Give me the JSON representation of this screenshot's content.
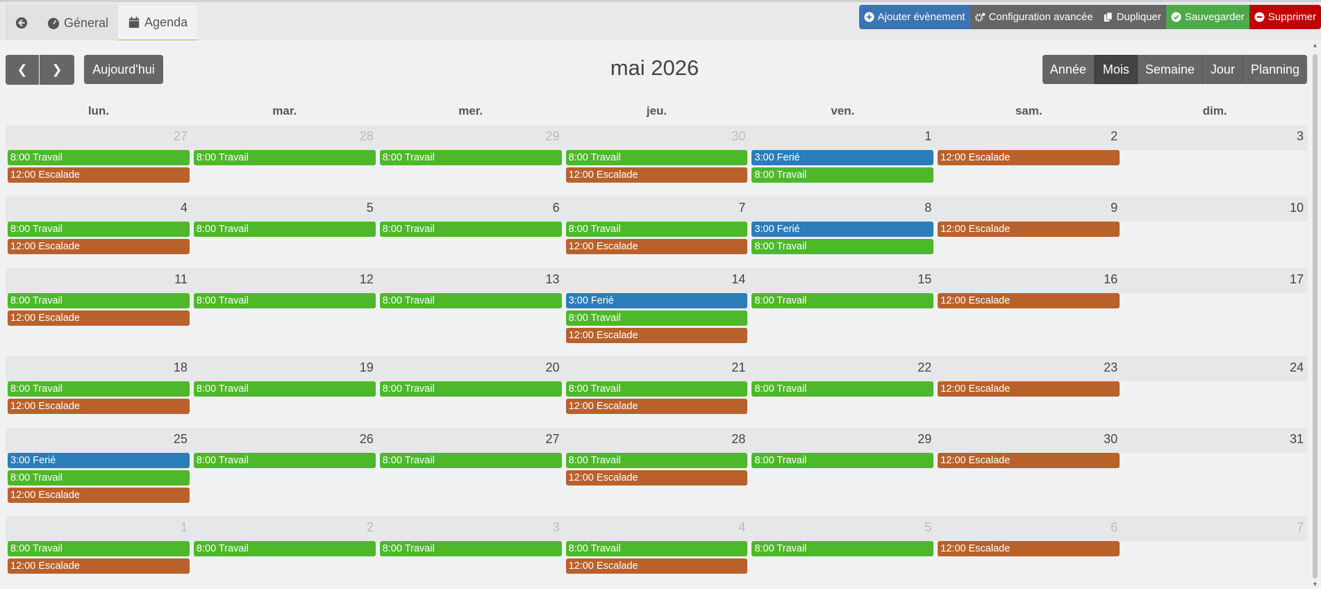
{
  "tabs": [
    {
      "label": "Géneral",
      "icon": "gauge-icon"
    },
    {
      "label": "Agenda",
      "icon": "calendar-icon",
      "active": true
    }
  ],
  "actions": [
    {
      "label": "Ajouter évènement",
      "icon": "plus-circle-icon",
      "color": "#3a74b3"
    },
    {
      "label": "Configuration avancée",
      "icon": "cogs-icon",
      "color": "#666666"
    },
    {
      "label": "Dupliquer",
      "icon": "copy-icon",
      "color": "#666666"
    },
    {
      "label": "Sauvegarder",
      "icon": "check-circle-icon",
      "color": "#4ea94b"
    },
    {
      "label": "Supprimer",
      "icon": "minus-circle-icon",
      "color": "#c00000"
    }
  ],
  "toolbar": {
    "today": "Aujourd'hui",
    "title": "mai 2026",
    "views": [
      "Année",
      "Mois",
      "Semaine",
      "Jour",
      "Planning"
    ],
    "active_view": "Mois"
  },
  "weekdays": [
    "lun.",
    "mar.",
    "mer.",
    "jeu.",
    "ven.",
    "sam.",
    "dim."
  ],
  "event_types": {
    "T": {
      "label": "8:00 Travail",
      "color": "#4cb82a"
    },
    "E": {
      "label": "12:00 Escalade",
      "color": "#b9612a"
    },
    "F": {
      "label": "3:00 Ferié",
      "color": "#2a7db8"
    }
  },
  "weeks": [
    [
      {
        "n": "27",
        "o": true,
        "e": [
          "T",
          "E"
        ]
      },
      {
        "n": "28",
        "o": true,
        "e": [
          "T"
        ]
      },
      {
        "n": "29",
        "o": true,
        "e": [
          "T"
        ]
      },
      {
        "n": "30",
        "o": true,
        "e": [
          "T",
          "E"
        ]
      },
      {
        "n": "1",
        "e": [
          "F",
          "T"
        ]
      },
      {
        "n": "2",
        "e": [
          "E"
        ]
      },
      {
        "n": "3",
        "e": []
      }
    ],
    [
      {
        "n": "4",
        "e": [
          "T",
          "E"
        ]
      },
      {
        "n": "5",
        "e": [
          "T"
        ]
      },
      {
        "n": "6",
        "e": [
          "T"
        ]
      },
      {
        "n": "7",
        "e": [
          "T",
          "E"
        ]
      },
      {
        "n": "8",
        "e": [
          "F",
          "T"
        ]
      },
      {
        "n": "9",
        "e": [
          "E"
        ]
      },
      {
        "n": "10",
        "e": []
      }
    ],
    [
      {
        "n": "11",
        "e": [
          "T",
          "E"
        ]
      },
      {
        "n": "12",
        "e": [
          "T"
        ]
      },
      {
        "n": "13",
        "e": [
          "T"
        ]
      },
      {
        "n": "14",
        "e": [
          "F",
          "T",
          "E"
        ]
      },
      {
        "n": "15",
        "e": [
          "T"
        ]
      },
      {
        "n": "16",
        "e": [
          "E"
        ]
      },
      {
        "n": "17",
        "e": []
      }
    ],
    [
      {
        "n": "18",
        "e": [
          "T",
          "E"
        ]
      },
      {
        "n": "19",
        "e": [
          "T"
        ]
      },
      {
        "n": "20",
        "e": [
          "T"
        ]
      },
      {
        "n": "21",
        "e": [
          "T",
          "E"
        ]
      },
      {
        "n": "22",
        "e": [
          "T"
        ]
      },
      {
        "n": "23",
        "e": [
          "E"
        ]
      },
      {
        "n": "24",
        "e": []
      }
    ],
    [
      {
        "n": "25",
        "e": [
          "F",
          "T",
          "E"
        ]
      },
      {
        "n": "26",
        "e": [
          "T"
        ]
      },
      {
        "n": "27",
        "e": [
          "T"
        ]
      },
      {
        "n": "28",
        "e": [
          "T",
          "E"
        ]
      },
      {
        "n": "29",
        "e": [
          "T"
        ]
      },
      {
        "n": "30",
        "e": [
          "E"
        ]
      },
      {
        "n": "31",
        "e": []
      }
    ],
    [
      {
        "n": "1",
        "o": true,
        "e": [
          "T",
          "E"
        ]
      },
      {
        "n": "2",
        "o": true,
        "e": [
          "T"
        ]
      },
      {
        "n": "3",
        "o": true,
        "e": [
          "T"
        ]
      },
      {
        "n": "4",
        "o": true,
        "e": [
          "T",
          "E"
        ]
      },
      {
        "n": "5",
        "o": true,
        "e": [
          "T"
        ]
      },
      {
        "n": "6",
        "o": true,
        "e": [
          "E"
        ]
      },
      {
        "n": "7",
        "o": true,
        "e": []
      }
    ]
  ]
}
